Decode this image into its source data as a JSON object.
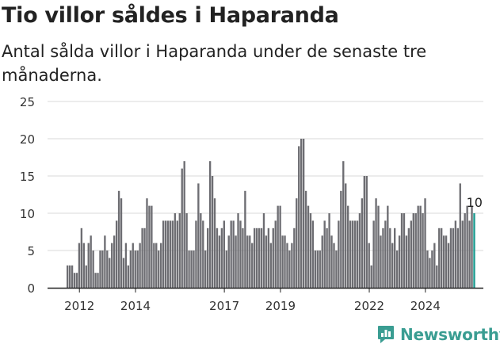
{
  "header": {
    "title": "Tio villor såldes i Haparanda",
    "subtitle": "Antal sålda villor i Haparanda under de senaste tre månaderna."
  },
  "brand": {
    "name": "Newsworthy",
    "icon": "newsworthy-logo-icon"
  },
  "colors": {
    "bar": "#6d6d72",
    "highlight": "#1a9a8f",
    "grid": "#d9d9d9",
    "brand": "#3a9d92"
  },
  "chart_data": {
    "type": "bar",
    "title": "",
    "xlabel": "",
    "ylabel": "",
    "ylim": [
      0,
      25
    ],
    "yticks": [
      0,
      5,
      10,
      15,
      20,
      25
    ],
    "xticks": [
      "2012",
      "2014",
      "2017",
      "2019",
      "2022",
      "2024"
    ],
    "xtick_month_index": [
      5,
      29,
      67,
      91,
      129,
      153
    ],
    "grid": "horizontal",
    "highlight_label": "10",
    "series": [
      {
        "values": [
          3,
          3,
          3,
          2,
          2,
          6,
          8,
          6,
          3,
          6,
          7,
          5,
          2,
          2,
          5,
          5,
          7,
          5,
          4,
          6,
          7,
          9,
          13,
          12,
          4,
          6,
          3,
          5,
          6,
          5,
          5,
          6,
          8,
          8,
          12,
          11,
          11,
          6,
          6,
          5,
          6,
          9,
          9,
          9,
          9,
          9,
          10,
          9,
          10,
          16,
          17,
          10,
          5,
          5,
          5,
          9,
          14,
          10,
          9,
          5,
          8,
          17,
          15,
          12,
          8,
          7,
          8,
          9,
          5,
          7,
          9,
          9,
          7,
          10,
          9,
          8,
          13,
          7,
          7,
          6,
          8,
          8,
          8,
          8,
          10,
          7,
          8,
          6,
          8,
          9,
          11,
          11,
          7,
          7,
          6,
          5,
          6,
          8,
          12,
          19,
          20,
          20,
          13,
          11,
          10,
          9,
          5,
          5,
          5,
          7,
          9,
          8,
          10,
          7,
          6,
          5,
          9,
          13,
          17,
          14,
          11,
          9,
          9,
          9,
          9,
          10,
          12,
          15,
          15,
          6,
          3,
          9,
          12,
          11,
          7,
          8,
          9,
          11,
          8,
          6,
          8,
          5,
          7,
          10,
          10,
          7,
          8,
          9,
          10,
          10,
          11,
          11,
          10,
          12,
          5,
          4,
          5,
          6,
          3,
          8,
          8,
          7,
          7,
          6,
          8,
          8,
          9,
          8,
          14,
          9,
          10,
          11,
          9,
          11,
          10
        ]
      }
    ]
  }
}
